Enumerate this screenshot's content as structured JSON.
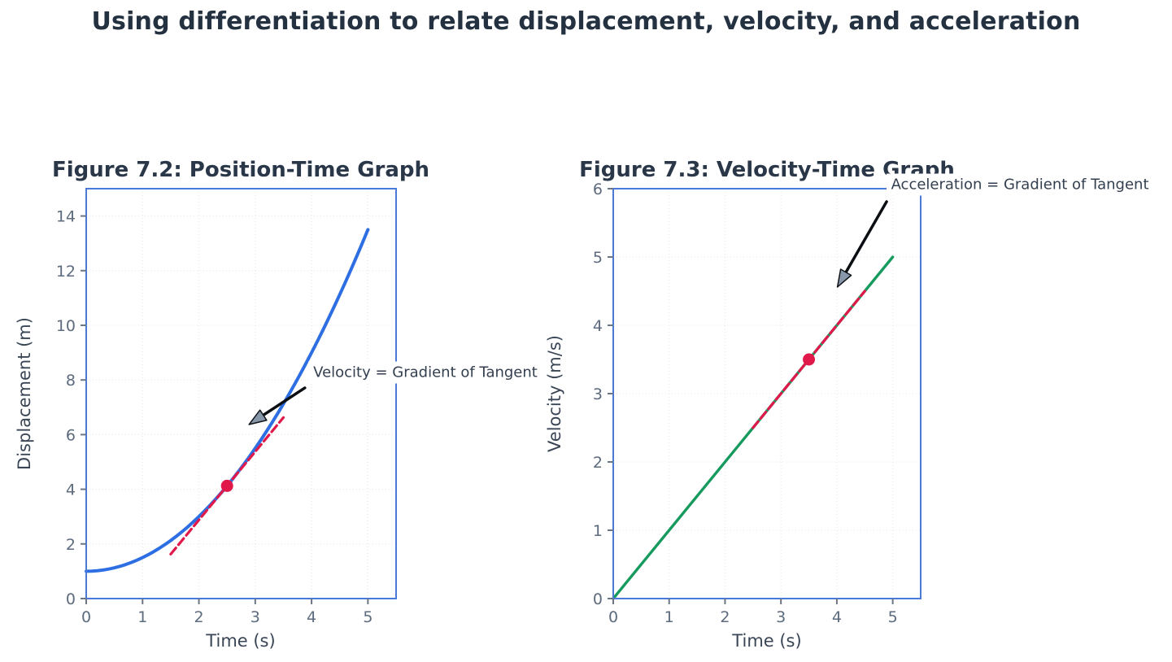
{
  "page": {
    "title": "Using differentiation to relate displacement, velocity, and acceleration",
    "background": "#ffffff"
  },
  "colors": {
    "title_text": "#243140",
    "figure_title_text": "#2a3748",
    "axis_label_text": "#3a4656",
    "tick_label_text": "#5d6b7e",
    "annotation_text": "#333f4f",
    "spine": "#4a7ad8",
    "tick_mark": "#6a7686",
    "grid": "#e7e9ec",
    "curve_blue": "#2d6fe3",
    "line_green": "#169a5e",
    "tangent_red": "#e1194b",
    "arrow_black": "#0b0f14",
    "arrow_head_fill": "#8796a9"
  },
  "chart_data": [
    {
      "type": "line",
      "title": "Figure 7.2: Position-Time Graph",
      "xlabel": "Time (s)",
      "ylabel": "Displacement (m)",
      "xlim": [
        0,
        5.5
      ],
      "ylim": [
        0,
        15
      ],
      "xticks": [
        0,
        1,
        2,
        3,
        4,
        5
      ],
      "yticks": [
        0,
        2,
        4,
        6,
        8,
        10,
        12,
        14
      ],
      "grid": true,
      "legend": "none",
      "series": [
        {
          "name": "displacement-curve",
          "color": "#2d6fe3",
          "width": 4,
          "style": "solid",
          "x": [
            0,
            0.1,
            0.2,
            0.3,
            0.4,
            0.5,
            0.6,
            0.7,
            0.8,
            0.9,
            1,
            1.1,
            1.2,
            1.3,
            1.4,
            1.5,
            1.6,
            1.7,
            1.8,
            1.9,
            2,
            2.1,
            2.2,
            2.3,
            2.4,
            2.5,
            2.6,
            2.7,
            2.8,
            2.9,
            3,
            3.1,
            3.2,
            3.3,
            3.4,
            3.5,
            3.6,
            3.7,
            3.8,
            3.9,
            4,
            4.1,
            4.2,
            4.3,
            4.4,
            4.5,
            4.6,
            4.7,
            4.8,
            4.9,
            5
          ],
          "y": [
            1,
            1.005,
            1.02,
            1.045,
            1.08,
            1.125,
            1.18,
            1.245,
            1.32,
            1.405,
            1.5,
            1.605,
            1.72,
            1.845,
            1.98,
            2.125,
            2.28,
            2.445,
            2.62,
            2.805,
            3,
            3.205,
            3.42,
            3.645,
            3.88,
            4.125,
            4.38,
            4.645,
            4.92,
            5.205,
            5.5,
            5.805,
            6.12,
            6.445,
            6.78,
            7.125,
            7.48,
            7.845,
            8.22,
            8.605,
            9,
            9.405,
            9.82,
            10.245,
            10.68,
            11.125,
            11.58,
            12.045,
            12.52,
            13.005,
            13.5
          ]
        },
        {
          "name": "tangent-line",
          "color": "#e1194b",
          "width": 3.2,
          "style": "dashed",
          "x": [
            1.5,
            3.5
          ],
          "y": [
            1.625,
            6.625
          ]
        }
      ],
      "marker": {
        "x": 2.5,
        "y": 4.125,
        "color": "#e1194b"
      },
      "annotation": {
        "text": "Velocity = Gradient of Tangent",
        "text_pos": [
          4.03,
          8.27
        ],
        "arrow_tail": [
          3.88,
          7.71
        ],
        "arrow_tip": [
          2.89,
          6.37
        ]
      }
    },
    {
      "type": "line",
      "title": "Figure 7.3: Velocity-Time Graph",
      "xlabel": "Time (s)",
      "ylabel": "Velocity (m/s)",
      "xlim": [
        0,
        5.5
      ],
      "ylim": [
        0,
        6
      ],
      "xticks": [
        0,
        1,
        2,
        3,
        4,
        5
      ],
      "yticks": [
        0,
        1,
        2,
        3,
        4,
        5,
        6
      ],
      "grid": true,
      "legend": "none",
      "series": [
        {
          "name": "velocity-line",
          "color": "#169a5e",
          "width": 3.4,
          "style": "solid",
          "x": [
            0,
            5
          ],
          "y": [
            0,
            5
          ]
        },
        {
          "name": "tangent-line",
          "color": "#e1194b",
          "width": 3.2,
          "style": "dashed",
          "x": [
            2.5,
            4.5
          ],
          "y": [
            2.5,
            4.5
          ]
        }
      ],
      "marker": {
        "x": 3.5,
        "y": 3.5,
        "color": "#e1194b"
      },
      "annotation": {
        "text": "Acceleration = Gradient of Tangent",
        "text_pos": [
          4.97,
          6.06
        ],
        "arrow_tail": [
          4.89,
          5.81
        ],
        "arrow_tip": [
          4.01,
          4.56
        ]
      }
    }
  ]
}
